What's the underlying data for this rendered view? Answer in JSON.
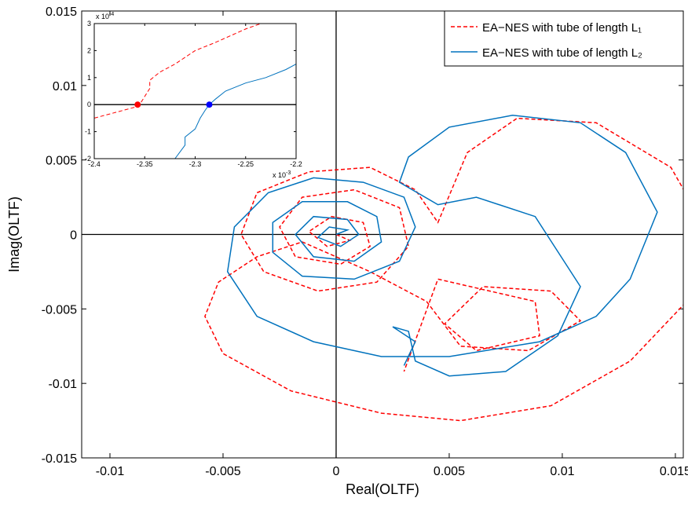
{
  "chart_data": [
    {
      "type": "line",
      "xlabel": "Real(OLTF)",
      "ylabel": "Imag(OLTF)",
      "xlim": [
        -0.01125,
        0.01535
      ],
      "ylim": [
        -0.015,
        0.015
      ],
      "xticks": [
        -0.01,
        -0.005,
        0,
        0.005,
        0.01,
        0.015
      ],
      "yticks": [
        -0.015,
        -0.01,
        -0.005,
        0,
        0.005,
        0.01,
        0.015
      ],
      "zero_lines": true,
      "legend": "upper right",
      "series": [
        {
          "name": "EA−NES with tube of length L₁",
          "color": "#ff0000",
          "line_style": "dashed",
          "x": [
            0,
            0.0006,
            -0.0004,
            -0.0012,
            -0.0002,
            0.0012,
            0.0015,
            0.0002,
            -0.0018,
            -0.0025,
            -0.0015,
            0.0008,
            0.0028,
            0.0032,
            0.0018,
            -0.0008,
            -0.0032,
            -0.0042,
            -0.0035,
            -0.0012,
            0.0015,
            0.0035,
            0.0045,
            0.0058,
            0.008,
            0.0115,
            0.0148,
            0.0165,
            0.0155,
            0.013,
            0.0095,
            0.0055,
            0.002,
            -0.002,
            -0.005,
            -0.0058,
            -0.0052,
            -0.0035,
            -0.0015,
            0.0015,
            0.004,
            0.0055,
            0.0085,
            0.0108,
            0.0095,
            0.0065,
            0.0048,
            0.0062,
            0.009,
            0.0088,
            0.0045,
            0.003
          ],
          "y": [
            0,
            -0.0004,
            -0.0008,
            0.0002,
            0.0012,
            0.0008,
            -0.0008,
            -0.002,
            -0.0015,
            0.0005,
            0.0025,
            0.003,
            0.0018,
            -0.0008,
            -0.0032,
            -0.0038,
            -0.0025,
            0,
            0.0028,
            0.0042,
            0.0045,
            0.003,
            0.0008,
            0.0055,
            0.0078,
            0.0075,
            0.0045,
            0,
            -0.0045,
            -0.0085,
            -0.0115,
            -0.0125,
            -0.012,
            -0.0105,
            -0.008,
            -0.0055,
            -0.0032,
            -0.0015,
            -0.0005,
            -0.0025,
            -0.0045,
            -0.0075,
            -0.0078,
            -0.0058,
            -0.0038,
            -0.0035,
            -0.006,
            -0.0078,
            -0.0068,
            -0.0045,
            -0.003,
            -0.0092
          ]
        },
        {
          "name": "EA−NES with tube of length L₂",
          "color": "#0072bd",
          "line_style": "solid",
          "x": [
            0,
            0.0005,
            -0.0003,
            -0.0008,
            0.0002,
            0.001,
            0.0005,
            -0.001,
            -0.0018,
            -0.001,
            0.0008,
            0.002,
            0.0018,
            0.0005,
            -0.0015,
            -0.0028,
            -0.0028,
            -0.0015,
            0.0008,
            0.0028,
            0.0035,
            0.003,
            0.0012,
            -0.001,
            -0.003,
            -0.0045,
            -0.0048,
            -0.0035,
            -0.001,
            0.002,
            0.005,
            0.009,
            0.0115,
            0.013,
            0.0138,
            0.0142,
            0.0128,
            0.0108,
            0.0078,
            0.005,
            0.0032,
            0.0028,
            0.0045,
            0.0062,
            0.0088,
            0.0108,
            0.0098,
            0.0075,
            0.005,
            0.0035,
            0.0032,
            0.0025,
            0.0035,
            0.003
          ],
          "y": [
            0,
            0.0003,
            0.0005,
            -0.0002,
            -0.0008,
            0,
            0.001,
            0.0012,
            0,
            -0.0015,
            -0.0018,
            -0.0005,
            0.0012,
            0.0022,
            0.0022,
            0.0008,
            -0.0012,
            -0.0028,
            -0.003,
            -0.0018,
            0.0005,
            0.0025,
            0.0035,
            0.0038,
            0.0028,
            0.0005,
            -0.0025,
            -0.0055,
            -0.0072,
            -0.0082,
            -0.0082,
            -0.0072,
            -0.0055,
            -0.003,
            0,
            0.0015,
            0.0055,
            0.0075,
            0.008,
            0.0072,
            0.0052,
            0.0035,
            0.002,
            0.0025,
            0.0012,
            -0.0035,
            -0.0068,
            -0.0092,
            -0.0095,
            -0.0085,
            -0.0065,
            -0.0062,
            -0.0072,
            -0.0088
          ]
        }
      ]
    },
    {
      "type": "line",
      "xlim": [
        -0.0024,
        -0.0022
      ],
      "ylim": [
        -0.0002,
        0.0003
      ],
      "xticks": [
        {
          "value": -0.0024,
          "label": "-2.4"
        },
        {
          "value": -0.00235,
          "label": "-2.35"
        },
        {
          "value": -0.0023,
          "label": "-2.3"
        },
        {
          "value": -0.00225,
          "label": "-2.25"
        },
        {
          "value": -0.0022,
          "label": "-2.2"
        }
      ],
      "yticks": [
        {
          "value": -0.0002,
          "label": "-2"
        },
        {
          "value": -0.0001,
          "label": "-1"
        },
        0,
        {
          "value": 0.0001,
          "label": "1"
        },
        {
          "value": 0.0002,
          "label": "2"
        },
        {
          "value": 0.0003,
          "label": "3"
        }
      ],
      "x_multiplier": {
        "base": "x 10",
        "exponent": "-3"
      },
      "y_multiplier": {
        "base": "x 10",
        "exponent": "-4"
      },
      "zero_lines": true,
      "series": [
        {
          "color": "#ff0000",
          "line_style": "dashed",
          "x": [
            -0.0024,
            -0.00236,
            -0.002355,
            -0.00235,
            -0.002345,
            -0.002345,
            -0.002335,
            -0.00232,
            -0.0023,
            -0.00228,
            -0.00225,
            -0.002235
          ],
          "y": [
            -5e-05,
            -1e-05,
            0,
            3e-05,
            6e-05,
            9e-05,
            0.00012,
            0.00015,
            0.0002,
            0.00023,
            0.00028,
            0.0003
          ]
        },
        {
          "color": "#0072bd",
          "line_style": "solid",
          "x": [
            -0.00232,
            -0.00231,
            -0.00231,
            -0.0023,
            -0.002295,
            -0.00229,
            -0.002286,
            -0.00228,
            -0.00227,
            -0.00225,
            -0.00223,
            -0.00221,
            -0.0022
          ],
          "y": [
            -0.0002,
            -0.00015,
            -0.00012,
            -9e-05,
            -5e-05,
            -2e-05,
            0,
            2e-05,
            5e-05,
            8e-05,
            0.0001,
            0.00013,
            0.00015
          ]
        }
      ],
      "markers": [
        {
          "x": -0.002357,
          "y": 0,
          "color": "#ff0000"
        },
        {
          "x": -0.002286,
          "y": 0,
          "color": "#0000ff"
        }
      ]
    }
  ]
}
